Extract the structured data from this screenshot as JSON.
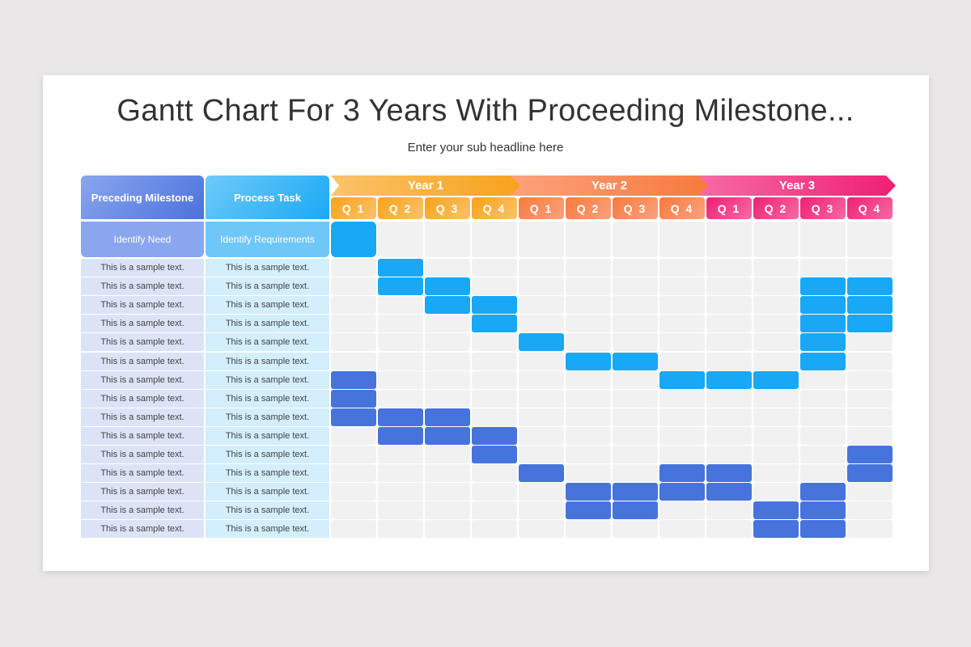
{
  "title": "Gantt Chart For 3 Years With Proceeding Milestone...",
  "subtitle": "Enter your sub headline here",
  "colors": {
    "light_bar": "#18a8f5",
    "dark_bar": "#4674dc",
    "year1": "#f9a929",
    "year2": "#f88650",
    "year3": "#f0287a"
  },
  "chart_data": {
    "type": "gantt",
    "columns": {
      "milestone_header": "Preceding Milestone",
      "task_header": "Process Task"
    },
    "years": [
      "Year 1",
      "Year 2",
      "Year 3"
    ],
    "quarters": [
      "Q 1",
      "Q 2",
      "Q 3",
      "Q 4",
      "Q 1",
      "Q 2",
      "Q 3",
      "Q 4",
      "Q 1",
      "Q 2",
      "Q 3",
      "Q 4"
    ],
    "rows": [
      {
        "milestone": "Identify Need",
        "task": "Identify Requirements",
        "cells": "L..........."
      },
      {
        "milestone": "This is a sample text.",
        "task": "This is a sample text.",
        "cells": ".L.........."
      },
      {
        "milestone": "This is a sample text.",
        "task": "This is a sample text.",
        "cells": ".LL.......LL"
      },
      {
        "milestone": "This is a sample text.",
        "task": "This is a sample text.",
        "cells": "..LL......LL"
      },
      {
        "milestone": "This is a sample text.",
        "task": "This is a sample text.",
        "cells": "...L......LL"
      },
      {
        "milestone": "This is a sample text.",
        "task": "This is a sample text.",
        "cells": "....L.....L."
      },
      {
        "milestone": "This is a sample text.",
        "task": "This is a sample text.",
        "cells": ".....LL...L."
      },
      {
        "milestone": "This is a sample text.",
        "task": "This is a sample text.",
        "cells": "D......LLL.."
      },
      {
        "milestone": "This is a sample text.",
        "task": "This is a sample text.",
        "cells": "D..........."
      },
      {
        "milestone": "This is a sample text.",
        "task": "This is a sample text.",
        "cells": "DDD........."
      },
      {
        "milestone": "This is a sample text.",
        "task": "This is a sample text.",
        "cells": ".DDD........"
      },
      {
        "milestone": "This is a sample text.",
        "task": "This is a sample text.",
        "cells": "...D.......D"
      },
      {
        "milestone": "This is a sample text.",
        "task": "This is a sample text.",
        "cells": "....D..DD..D"
      },
      {
        "milestone": "This is a sample text.",
        "task": "This is a sample text.",
        "cells": ".....DDDD.D."
      },
      {
        "milestone": "This is a sample text.",
        "task": "This is a sample text.",
        "cells": ".....DD..DD."
      },
      {
        "milestone": "This is a sample text.",
        "task": "This is a sample text.",
        "cells": ".........DD."
      }
    ]
  }
}
